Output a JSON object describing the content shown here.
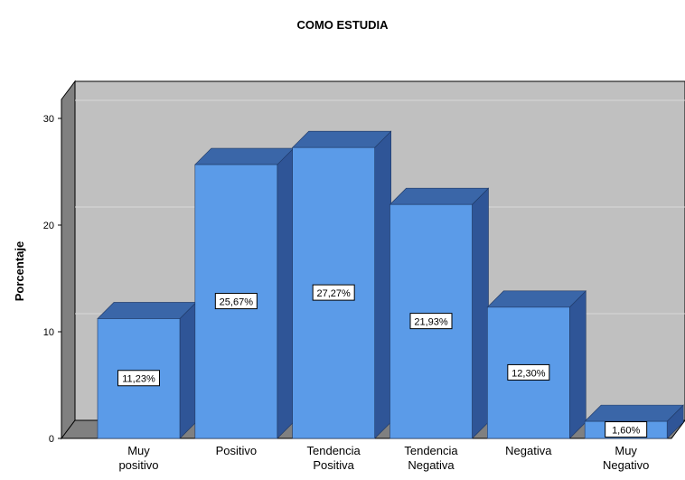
{
  "chart_data": {
    "type": "bar3d",
    "title": "COMO ESTUDIA",
    "y_label": "Porcentaje",
    "categories": [
      "Muy positivo",
      "Positivo",
      "Tendencia Positiva",
      "Tendencia Negativa",
      "Negativa",
      "Muy Negativo"
    ],
    "values": [
      11.23,
      25.67,
      27.27,
      21.93,
      12.3,
      1.6
    ],
    "value_labels": [
      "11,23%",
      "25,67%",
      "27,27%",
      "21,93%",
      "12,30%",
      "1,60%"
    ],
    "color": "#5b9be8",
    "ylim": [
      0,
      30
    ],
    "yticks": [
      0,
      10,
      20,
      30
    ],
    "grid": true
  }
}
